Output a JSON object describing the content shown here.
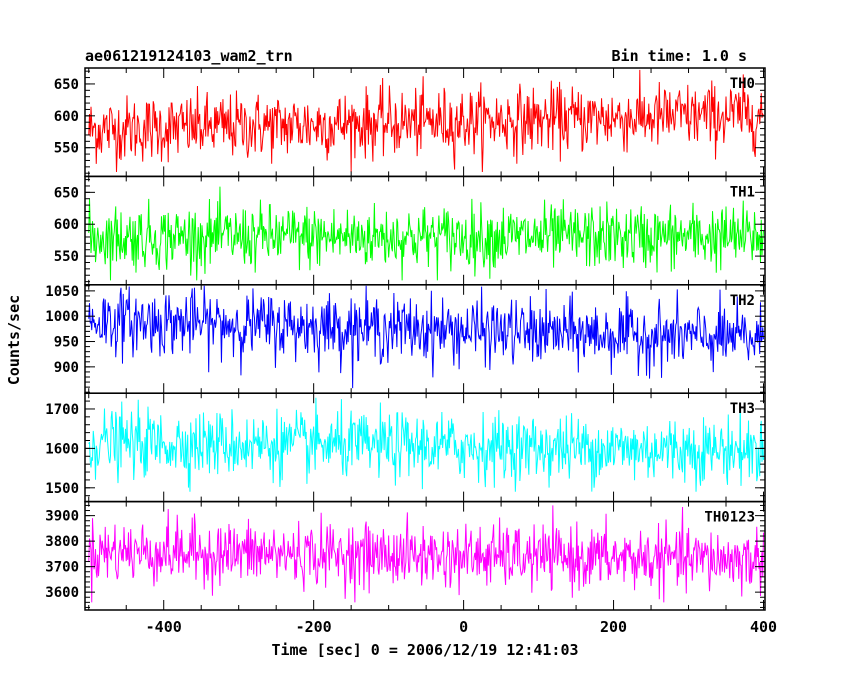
{
  "header": {
    "title": "ae061219124103_wam2_trn",
    "bin_time": "Bin time: 1.0 s"
  },
  "axes": {
    "ylabel": "Counts/sec",
    "xlabel": "Time [sec] 0 = 2006/12/19 12:41:03"
  },
  "chart_data": {
    "type": "line",
    "x_range": [
      -505,
      402
    ],
    "x_tick_labels": [
      "-400",
      "-200",
      "0",
      "200",
      "400"
    ],
    "x_ticks": [
      -400,
      -200,
      0,
      200,
      400
    ],
    "bin_time_s": 1.0,
    "panels": [
      {
        "name": "TH0",
        "color": "#ff0000",
        "ylim": [
          505,
          675
        ],
        "yticks": [
          550,
          600,
          650
        ],
        "ytick_labels": [
          "550",
          "600",
          "650"
        ],
        "mean_start": 578,
        "mean_end": 602,
        "noise_sd": 26,
        "clip": [
          512,
          672
        ]
      },
      {
        "name": "TH1",
        "color": "#00ff00",
        "ylim": [
          505,
          675
        ],
        "yticks": [
          550,
          600,
          650
        ],
        "ytick_labels": [
          "550",
          "600",
          "650"
        ],
        "mean_start": 580,
        "mean_end": 580,
        "noise_sd": 25,
        "clip": [
          512,
          672
        ]
      },
      {
        "name": "TH2",
        "color": "#0000ff",
        "ylim": [
          848,
          1062
        ],
        "yticks": [
          900,
          950,
          1000,
          1050
        ],
        "ytick_labels": [
          "900",
          "950",
          "1000",
          "1050"
        ],
        "mean_start": 992,
        "mean_end": 955,
        "noise_sd": 32,
        "clip": [
          858,
          1060
        ]
      },
      {
        "name": "TH3",
        "color": "#00ffff",
        "ylim": [
          1465,
          1740
        ],
        "yticks": [
          1500,
          1600,
          1700
        ],
        "ytick_labels": [
          "1500",
          "1600",
          "1700"
        ],
        "mean_start": 1615,
        "mean_end": 1595,
        "noise_sd": 42,
        "clip": [
          1490,
          1735
        ]
      },
      {
        "name": "TH0123",
        "color": "#ff00ff",
        "ylim": [
          3530,
          3955
        ],
        "yticks": [
          3600,
          3700,
          3800,
          3900
        ],
        "ytick_labels": [
          "3600",
          "3700",
          "3800",
          "3900"
        ],
        "mean_start": 3760,
        "mean_end": 3725,
        "noise_sd": 62,
        "clip": [
          3560,
          3940
        ]
      }
    ]
  }
}
